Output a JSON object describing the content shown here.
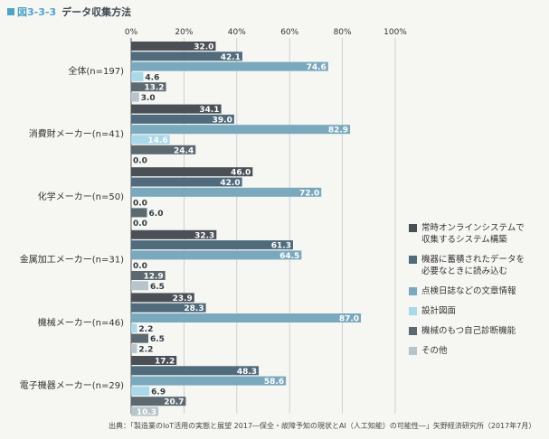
{
  "title": {
    "fig_number": "図3-3-3",
    "text": "データ収集方法"
  },
  "source": "出典：「製造業のIoT活用の実態と展望 2017―保全・故障予知の現状とAI（人工知能）の可能性―」矢野経済研究所（2017年7月）",
  "chart_data": {
    "type": "bar",
    "orientation": "horizontal",
    "categories": [
      "全体(n=197)",
      "消費財メーカー(n=41)",
      "化学メーカー(n=50)",
      "金属加工メーカー(n=31)",
      "機械メーカー(n=46)",
      "電子機器メーカー(n=29)"
    ],
    "series": [
      {
        "name": "常時オンラインシステムで\n収集するシステム構築",
        "color": "#4a5056",
        "values": [
          32.0,
          34.1,
          46.0,
          32.3,
          23.9,
          17.2
        ]
      },
      {
        "name": "機器に蓄積されたデータを\n必要なときに読み込む",
        "color": "#4f6b7c",
        "values": [
          42.1,
          39.0,
          42.0,
          61.3,
          28.3,
          48.3
        ]
      },
      {
        "name": "点検日誌などの文章情報",
        "color": "#7aa8bd",
        "values": [
          74.6,
          82.9,
          72.0,
          64.5,
          87.0,
          58.6
        ]
      },
      {
        "name": "設計図面",
        "color": "#a9d8e8",
        "values": [
          4.6,
          14.6,
          0.0,
          0.0,
          2.2,
          6.9
        ]
      },
      {
        "name": "機械のもつ自己診断機能",
        "color": "#5d6970",
        "values": [
          13.2,
          24.4,
          6.0,
          12.9,
          6.5,
          20.7
        ]
      },
      {
        "name": "その他",
        "color": "#b7c4c9",
        "values": [
          3.0,
          0.0,
          0.0,
          6.5,
          2.2,
          10.3
        ]
      }
    ],
    "xlim": [
      0,
      100
    ],
    "xticks": [
      "0%",
      "20%",
      "40%",
      "60%",
      "80%",
      "100%"
    ],
    "grid": true,
    "legend_position": "right"
  }
}
